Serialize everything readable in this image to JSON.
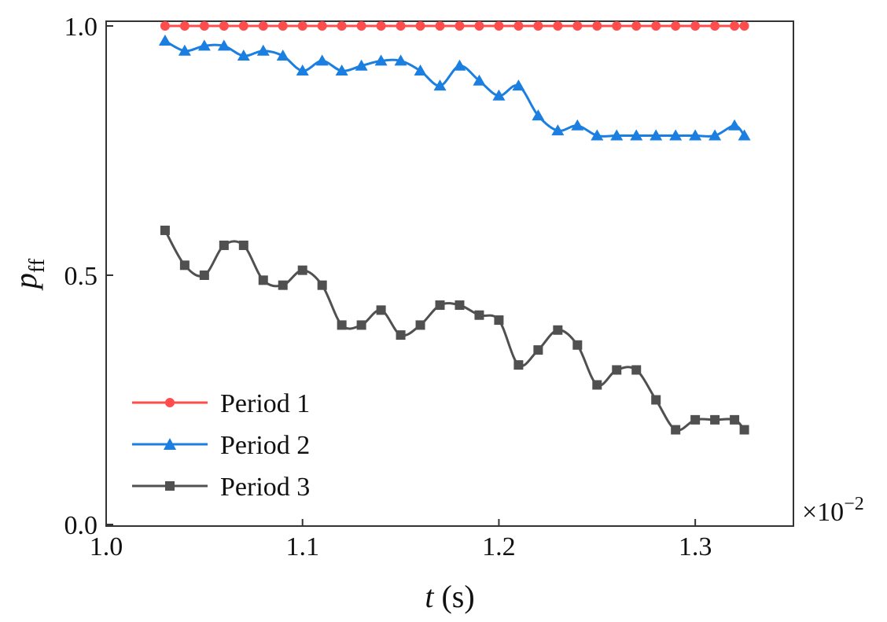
{
  "chart_data": {
    "type": "line",
    "title": "",
    "xlabel_var": "t",
    "xlabel_unit": " (s)",
    "ylabel_var": "p",
    "ylabel_sub": "ff",
    "xlim": [
      1.0,
      1.35
    ],
    "ylim": [
      0.0,
      1.0
    ],
    "x_ticks": [
      1.0,
      1.1,
      1.2,
      1.3
    ],
    "x_tick_labels": [
      "1.0",
      "1.1",
      "1.2",
      "1.3"
    ],
    "y_ticks": [
      0.0,
      0.5,
      1.0
    ],
    "y_tick_labels": [
      "0.0",
      "0.5",
      "1.0"
    ],
    "x_multiplier_base": "×10",
    "x_multiplier_exp": "−2",
    "grid": false,
    "legend_position": "bottom-left",
    "x": [
      1.03,
      1.04,
      1.05,
      1.06,
      1.07,
      1.08,
      1.09,
      1.1,
      1.11,
      1.12,
      1.13,
      1.14,
      1.15,
      1.16,
      1.17,
      1.18,
      1.19,
      1.2,
      1.21,
      1.22,
      1.23,
      1.24,
      1.25,
      1.26,
      1.27,
      1.28,
      1.29,
      1.3,
      1.31,
      1.32,
      1.325
    ],
    "series": [
      {
        "name": "Period 1",
        "color": "#ff4d4d",
        "marker": "circle",
        "values": [
          1.0,
          1.0,
          1.0,
          1.0,
          1.0,
          1.0,
          1.0,
          1.0,
          1.0,
          1.0,
          1.0,
          1.0,
          1.0,
          1.0,
          1.0,
          1.0,
          1.0,
          1.0,
          1.0,
          1.0,
          1.0,
          1.0,
          1.0,
          1.0,
          1.0,
          1.0,
          1.0,
          1.0,
          1.0,
          1.0,
          1.0
        ]
      },
      {
        "name": "Period 2",
        "color": "#1a7fe0",
        "marker": "triangle",
        "values": [
          0.97,
          0.95,
          0.96,
          0.96,
          0.94,
          0.95,
          0.94,
          0.91,
          0.93,
          0.91,
          0.92,
          0.93,
          0.93,
          0.91,
          0.88,
          0.92,
          0.89,
          0.86,
          0.88,
          0.82,
          0.79,
          0.8,
          0.78,
          0.78,
          0.78,
          0.78,
          0.78,
          0.78,
          0.78,
          0.8,
          0.78
        ]
      },
      {
        "name": "Period 3",
        "color": "#505050",
        "marker": "square",
        "values": [
          0.59,
          0.52,
          0.5,
          0.56,
          0.56,
          0.49,
          0.48,
          0.51,
          0.48,
          0.4,
          0.4,
          0.43,
          0.38,
          0.4,
          0.44,
          0.44,
          0.42,
          0.41,
          0.32,
          0.35,
          0.39,
          0.36,
          0.28,
          0.31,
          0.31,
          0.25,
          0.19,
          0.21,
          0.21,
          0.21,
          0.19
        ]
      }
    ]
  }
}
